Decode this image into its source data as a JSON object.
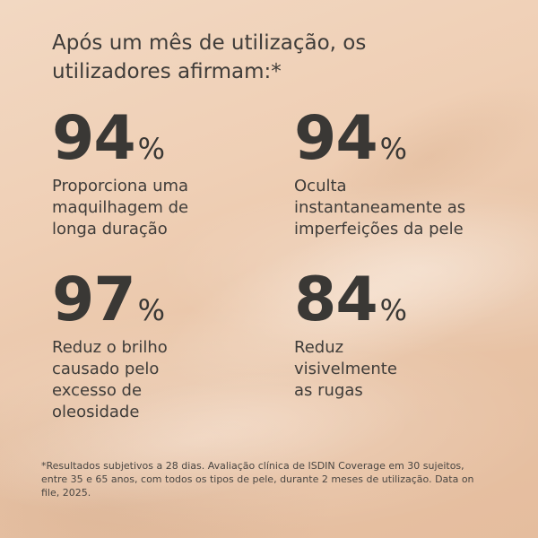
{
  "headline": {
    "line1": "Após um mês de utilização, os",
    "line2": "utilizadores afirmam:*"
  },
  "stats": [
    {
      "value": "94",
      "unit": "%",
      "desc": [
        "Proporciona uma",
        "maquilhagem de",
        "longa duração"
      ]
    },
    {
      "value": "94",
      "unit": "%",
      "desc": [
        "Oculta",
        "instantaneamente as",
        "imperfeições da pele"
      ]
    },
    {
      "value": "97",
      "unit": "%",
      "desc": [
        "Reduz o brilho",
        "causado pelo",
        "excesso de",
        "oleosidade"
      ]
    },
    {
      "value": "84",
      "unit": "%",
      "desc": [
        "Reduz",
        "visivelmente",
        "as rugas"
      ]
    }
  ],
  "footnote": {
    "line1": "*Resultados subjetivos a 28 dias. Avaliação clínica de ISDIN Coverage em 30 sujeitos,",
    "line2": "entre 35 e 65 anos, com todos os tipos de pele, durante 2 meses de utilização. Data on",
    "line3": "file, 2025."
  },
  "colors": {
    "text": "#3c3a37",
    "background": "#efcfb5"
  }
}
